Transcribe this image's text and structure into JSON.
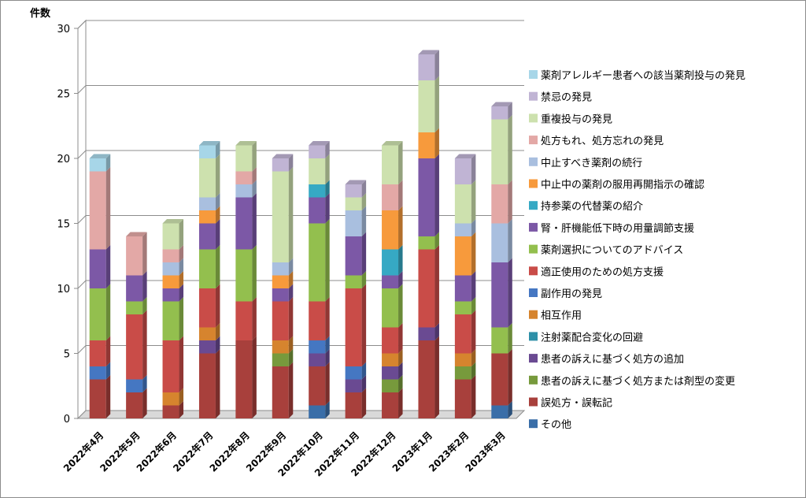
{
  "chart_data": {
    "type": "bar",
    "stacked": true,
    "three_d": true,
    "ylabel": "件数",
    "xlabel": "",
    "ylim": [
      0,
      30
    ],
    "yticks": [
      0,
      5,
      10,
      15,
      20,
      25,
      30
    ],
    "grid": true,
    "legend_position": "right",
    "categories": [
      "2022年4月",
      "2022年5月",
      "2022年6月",
      "2022年7月",
      "2022年8月",
      "2022年9月",
      "2022年10月",
      "2022年11月",
      "2022年12月",
      "2023年1月",
      "2023年2月",
      "2023年3月"
    ],
    "series": [
      {
        "name": "その他",
        "color": "#3a6ea8",
        "values": [
          0,
          0,
          0,
          0,
          0,
          0,
          1,
          0,
          0,
          0,
          0,
          1
        ]
      },
      {
        "name": "誤処方・誤転記",
        "color": "#a8403c",
        "values": [
          3,
          2,
          1,
          5,
          6,
          4,
          3,
          2,
          2,
          6,
          3,
          4
        ]
      },
      {
        "name": "患者の訴えに基づく処方または剤型の変更",
        "color": "#779a3c",
        "values": [
          0,
          0,
          0,
          0,
          0,
          1,
          0,
          0,
          1,
          0,
          1,
          0
        ]
      },
      {
        "name": "患者の訴えに基づく処方の追加",
        "color": "#6a4a92",
        "values": [
          0,
          0,
          0,
          1,
          0,
          0,
          1,
          1,
          1,
          1,
          0,
          0
        ]
      },
      {
        "name": "注射薬配合変化の回避",
        "color": "#2e90a8",
        "values": [
          0,
          0,
          0,
          0,
          0,
          0,
          0,
          0,
          0,
          0,
          0,
          0
        ]
      },
      {
        "name": "相互作用",
        "color": "#d6842e",
        "values": [
          0,
          0,
          1,
          1,
          0,
          1,
          0,
          0,
          1,
          0,
          1,
          0
        ]
      },
      {
        "name": "副作用の発見",
        "color": "#4577c2",
        "values": [
          1,
          1,
          0,
          0,
          0,
          0,
          1,
          1,
          0,
          0,
          0,
          0
        ]
      },
      {
        "name": "適正使用のための処方支援",
        "color": "#c94c48",
        "values": [
          2,
          5,
          4,
          3,
          3,
          3,
          3,
          6,
          2,
          6,
          3,
          0
        ]
      },
      {
        "name": "薬剤選択についてのアドバイス",
        "color": "#93bf4e",
        "values": [
          4,
          1,
          3,
          3,
          4,
          0,
          6,
          1,
          3,
          1,
          1,
          2
        ]
      },
      {
        "name": "腎・肝機能低下時の用量調節支援",
        "color": "#7c58a6",
        "values": [
          3,
          2,
          1,
          2,
          4,
          1,
          2,
          3,
          1,
          6,
          2,
          5
        ]
      },
      {
        "name": "持参薬の代替薬の紹介",
        "color": "#36a9c4",
        "values": [
          0,
          0,
          0,
          0,
          0,
          0,
          1,
          0,
          2,
          0,
          0,
          0
        ]
      },
      {
        "name": "中止中の薬剤の服用再開指示の確認",
        "color": "#f79a3c",
        "values": [
          0,
          0,
          1,
          1,
          0,
          1,
          0,
          0,
          3,
          2,
          3,
          0
        ]
      },
      {
        "name": "中止すべき薬剤の続行",
        "color": "#a9bfdf",
        "values": [
          0,
          0,
          1,
          1,
          1,
          1,
          0,
          2,
          0,
          0,
          1,
          3
        ]
      },
      {
        "name": "処方もれ、処方忘れの発見",
        "color": "#e3a8a6",
        "values": [
          6,
          3,
          1,
          0,
          1,
          0,
          0,
          0,
          2,
          0,
          0,
          3
        ]
      },
      {
        "name": "重複投与の発見",
        "color": "#cde1ae",
        "values": [
          0,
          0,
          2,
          3,
          2,
          7,
          2,
          1,
          3,
          4,
          3,
          5
        ]
      },
      {
        "name": "禁忌の発見",
        "color": "#c0b4d4",
        "values": [
          0,
          0,
          0,
          0,
          0,
          1,
          1,
          1,
          0,
          2,
          2,
          1
        ]
      },
      {
        "name": "薬剤アレルギー患者への該当薬剤投与の発見",
        "color": "#a7d6e8",
        "values": [
          1,
          0,
          0,
          1,
          0,
          0,
          0,
          0,
          0,
          0,
          0,
          0
        ]
      }
    ]
  }
}
